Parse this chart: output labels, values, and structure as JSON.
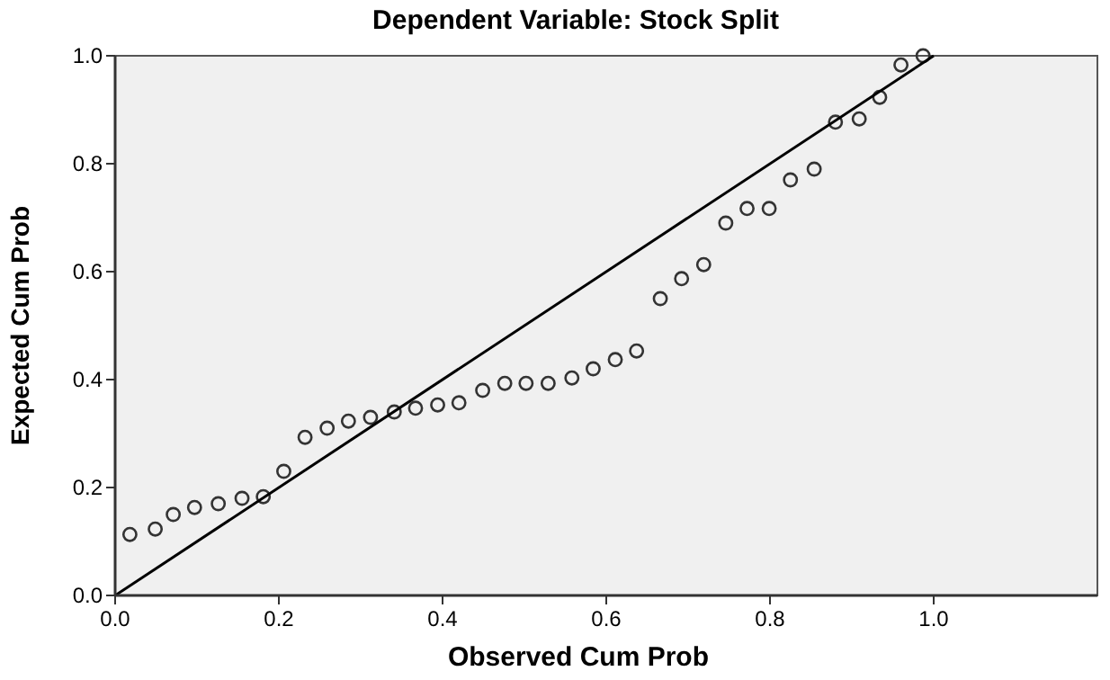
{
  "chart_data": {
    "type": "scatter",
    "title": "Dependent Variable: Stock Split",
    "xlabel": "Observed Cum Prob",
    "ylabel": "Expected Cum Prob",
    "xlim": [
      0,
      1.2
    ],
    "ylim": [
      0,
      1
    ],
    "xticks": [
      {
        "value": 0,
        "label": "0.0"
      },
      0.2,
      0.4,
      0.6,
      0.8,
      {
        "value": 1,
        "label": "1.0"
      }
    ],
    "yticks": [
      {
        "value": 0,
        "label": "0.0"
      },
      0.2,
      0.4,
      0.6,
      0.8,
      {
        "value": 1,
        "label": "1.0"
      }
    ],
    "grid": false,
    "marker": "circle",
    "series": [
      {
        "type": "scatter",
        "color": "#333333",
        "x": [
          0.018,
          0.049,
          0.071,
          0.097,
          0.126,
          0.155,
          0.181,
          0.206,
          0.232,
          0.259,
          0.285,
          0.312,
          0.341,
          0.367,
          0.394,
          0.42,
          0.449,
          0.476,
          0.502,
          0.529,
          0.558,
          0.584,
          0.611,
          0.637,
          0.666,
          0.692,
          0.719,
          0.746,
          0.772,
          0.799,
          0.825,
          0.854,
          0.88,
          0.909,
          0.934,
          0.96,
          0.987
        ],
        "values": [
          0.113,
          0.123,
          0.15,
          0.163,
          0.17,
          0.18,
          0.183,
          0.23,
          0.293,
          0.31,
          0.323,
          0.33,
          0.34,
          0.347,
          0.353,
          0.357,
          0.38,
          0.393,
          0.393,
          0.393,
          0.403,
          0.42,
          0.437,
          0.453,
          0.55,
          0.587,
          0.613,
          0.69,
          0.717,
          0.717,
          0.77,
          0.79,
          0.877,
          0.883,
          0.923,
          0.983,
          1.0
        ]
      },
      {
        "type": "line",
        "color": "#000000",
        "x": [
          0,
          1
        ],
        "values": [
          0,
          1
        ],
        "marker": "none",
        "line_style": "solid"
      }
    ]
  }
}
